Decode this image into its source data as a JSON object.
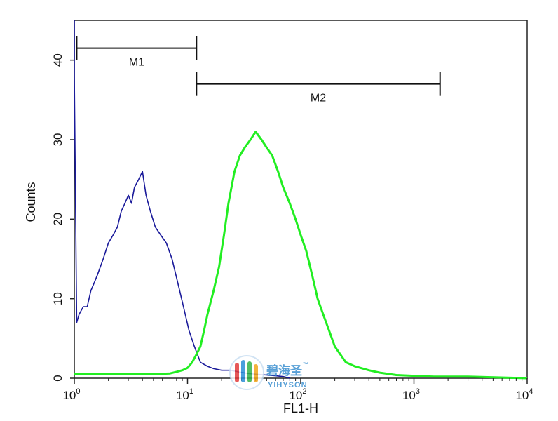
{
  "chart_data": {
    "type": "line",
    "title": "",
    "xlabel": "FL1-H",
    "ylabel": "Counts",
    "xscale": "log",
    "xlim": [
      1,
      10000
    ],
    "ylim": [
      0,
      45
    ],
    "x_ticks": [
      {
        "base": "10",
        "exp": "0",
        "value": 1
      },
      {
        "base": "10",
        "exp": "1",
        "value": 10
      },
      {
        "base": "10",
        "exp": "2",
        "value": 100
      },
      {
        "base": "10",
        "exp": "3",
        "value": 1000
      },
      {
        "base": "10",
        "exp": "4",
        "value": 10000
      }
    ],
    "y_ticks": [
      "0",
      "10",
      "20",
      "30",
      "40"
    ],
    "grid": false,
    "gates": [
      {
        "label": "M1",
        "x_start": 1.05,
        "x_end": 12,
        "y": 41.5
      },
      {
        "label": "M2",
        "x_start": 12,
        "x_end": 1700,
        "y": 37
      }
    ],
    "series": [
      {
        "color": "#1a1a9a",
        "x": [
          1.0,
          1.0,
          1.05,
          1.1,
          1.2,
          1.3,
          1.4,
          1.5,
          1.6,
          1.8,
          2.0,
          2.2,
          2.4,
          2.6,
          2.8,
          3.0,
          3.2,
          3.4,
          3.7,
          4.0,
          4.3,
          4.7,
          5.2,
          5.8,
          6.5,
          7.3,
          8.2,
          9.2,
          10.3,
          11.5,
          13,
          15,
          17,
          20,
          24,
          28,
          34,
          40,
          50,
          60,
          70,
          80
        ],
        "values": [
          45,
          38,
          7,
          8,
          9,
          9,
          11,
          12,
          13,
          15,
          17,
          18,
          19,
          21,
          22,
          23,
          22,
          24,
          25,
          26,
          23,
          21,
          19,
          18,
          17,
          15,
          12,
          9,
          6,
          4,
          2,
          1.5,
          1.2,
          1,
          1,
          0.8,
          0.6,
          0.5,
          0.4,
          0.3,
          0.2,
          0
        ]
      },
      {
        "color": "#22ee22",
        "x": [
          1.0,
          2,
          3,
          5,
          7,
          8,
          9,
          10,
          11,
          12,
          13,
          14,
          15,
          17,
          19,
          21,
          23,
          26,
          29,
          32,
          36,
          40,
          45,
          50,
          56,
          63,
          70,
          80,
          90,
          100,
          112,
          126,
          141,
          158,
          178,
          200,
          250,
          300,
          400,
          500,
          700,
          1000,
          1500,
          3000,
          10000
        ],
        "values": [
          0.5,
          0.5,
          0.5,
          0.5,
          0.6,
          0.8,
          1,
          1.3,
          2,
          3,
          4,
          6,
          8,
          11,
          14,
          18,
          22,
          26,
          28,
          29,
          30,
          31,
          30,
          29,
          28,
          26,
          24,
          22,
          20,
          18,
          16,
          13,
          10,
          8,
          6,
          4,
          2,
          1.5,
          1,
          0.7,
          0.4,
          0.3,
          0.2,
          0.2,
          0
        ]
      }
    ]
  },
  "watermark": {
    "text_cn": "碧海圣",
    "text_en": "YIHYSON",
    "trademark": "™",
    "colors": [
      "#e23b3b",
      "#2b8fd8",
      "#34b34a",
      "#f2a51a"
    ]
  }
}
